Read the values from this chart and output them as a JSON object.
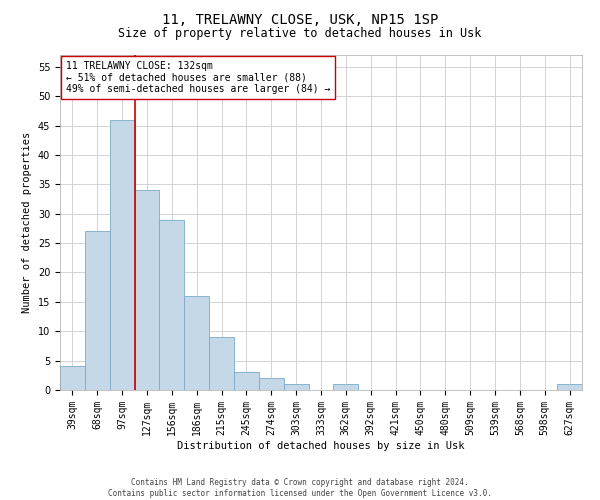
{
  "title": "11, TRELAWNY CLOSE, USK, NP15 1SP",
  "subtitle": "Size of property relative to detached houses in Usk",
  "xlabel": "Distribution of detached houses by size in Usk",
  "ylabel": "Number of detached properties",
  "bar_values": [
    4,
    27,
    46,
    34,
    29,
    16,
    9,
    3,
    2,
    1,
    0,
    1,
    0,
    0,
    0,
    0,
    0,
    0,
    0,
    0,
    1
  ],
  "bar_labels": [
    "39sqm",
    "68sqm",
    "97sqm",
    "127sqm",
    "156sqm",
    "186sqm",
    "215sqm",
    "245sqm",
    "274sqm",
    "303sqm",
    "333sqm",
    "362sqm",
    "392sqm",
    "421sqm",
    "450sqm",
    "480sqm",
    "509sqm",
    "539sqm",
    "568sqm",
    "598sqm",
    "627sqm"
  ],
  "bar_color": "#c5d8e8",
  "bar_edge_color": "#7baac8",
  "ylim": [
    0,
    57
  ],
  "yticks": [
    0,
    5,
    10,
    15,
    20,
    25,
    30,
    35,
    40,
    45,
    50,
    55
  ],
  "property_line_x": 2.5,
  "property_line_color": "#cc0000",
  "annotation_text": "11 TRELAWNY CLOSE: 132sqm\n← 51% of detached houses are smaller (88)\n49% of semi-detached houses are larger (84) →",
  "annotation_box_color": "#ffffff",
  "annotation_box_edge": "#cc0000",
  "footer_line1": "Contains HM Land Registry data © Crown copyright and database right 2024.",
  "footer_line2": "Contains public sector information licensed under the Open Government Licence v3.0.",
  "background_color": "#ffffff",
  "grid_color": "#cccccc",
  "title_fontsize": 10,
  "subtitle_fontsize": 8.5,
  "axis_label_fontsize": 7.5,
  "tick_fontsize": 7,
  "annotation_fontsize": 7,
  "footer_fontsize": 5.5
}
